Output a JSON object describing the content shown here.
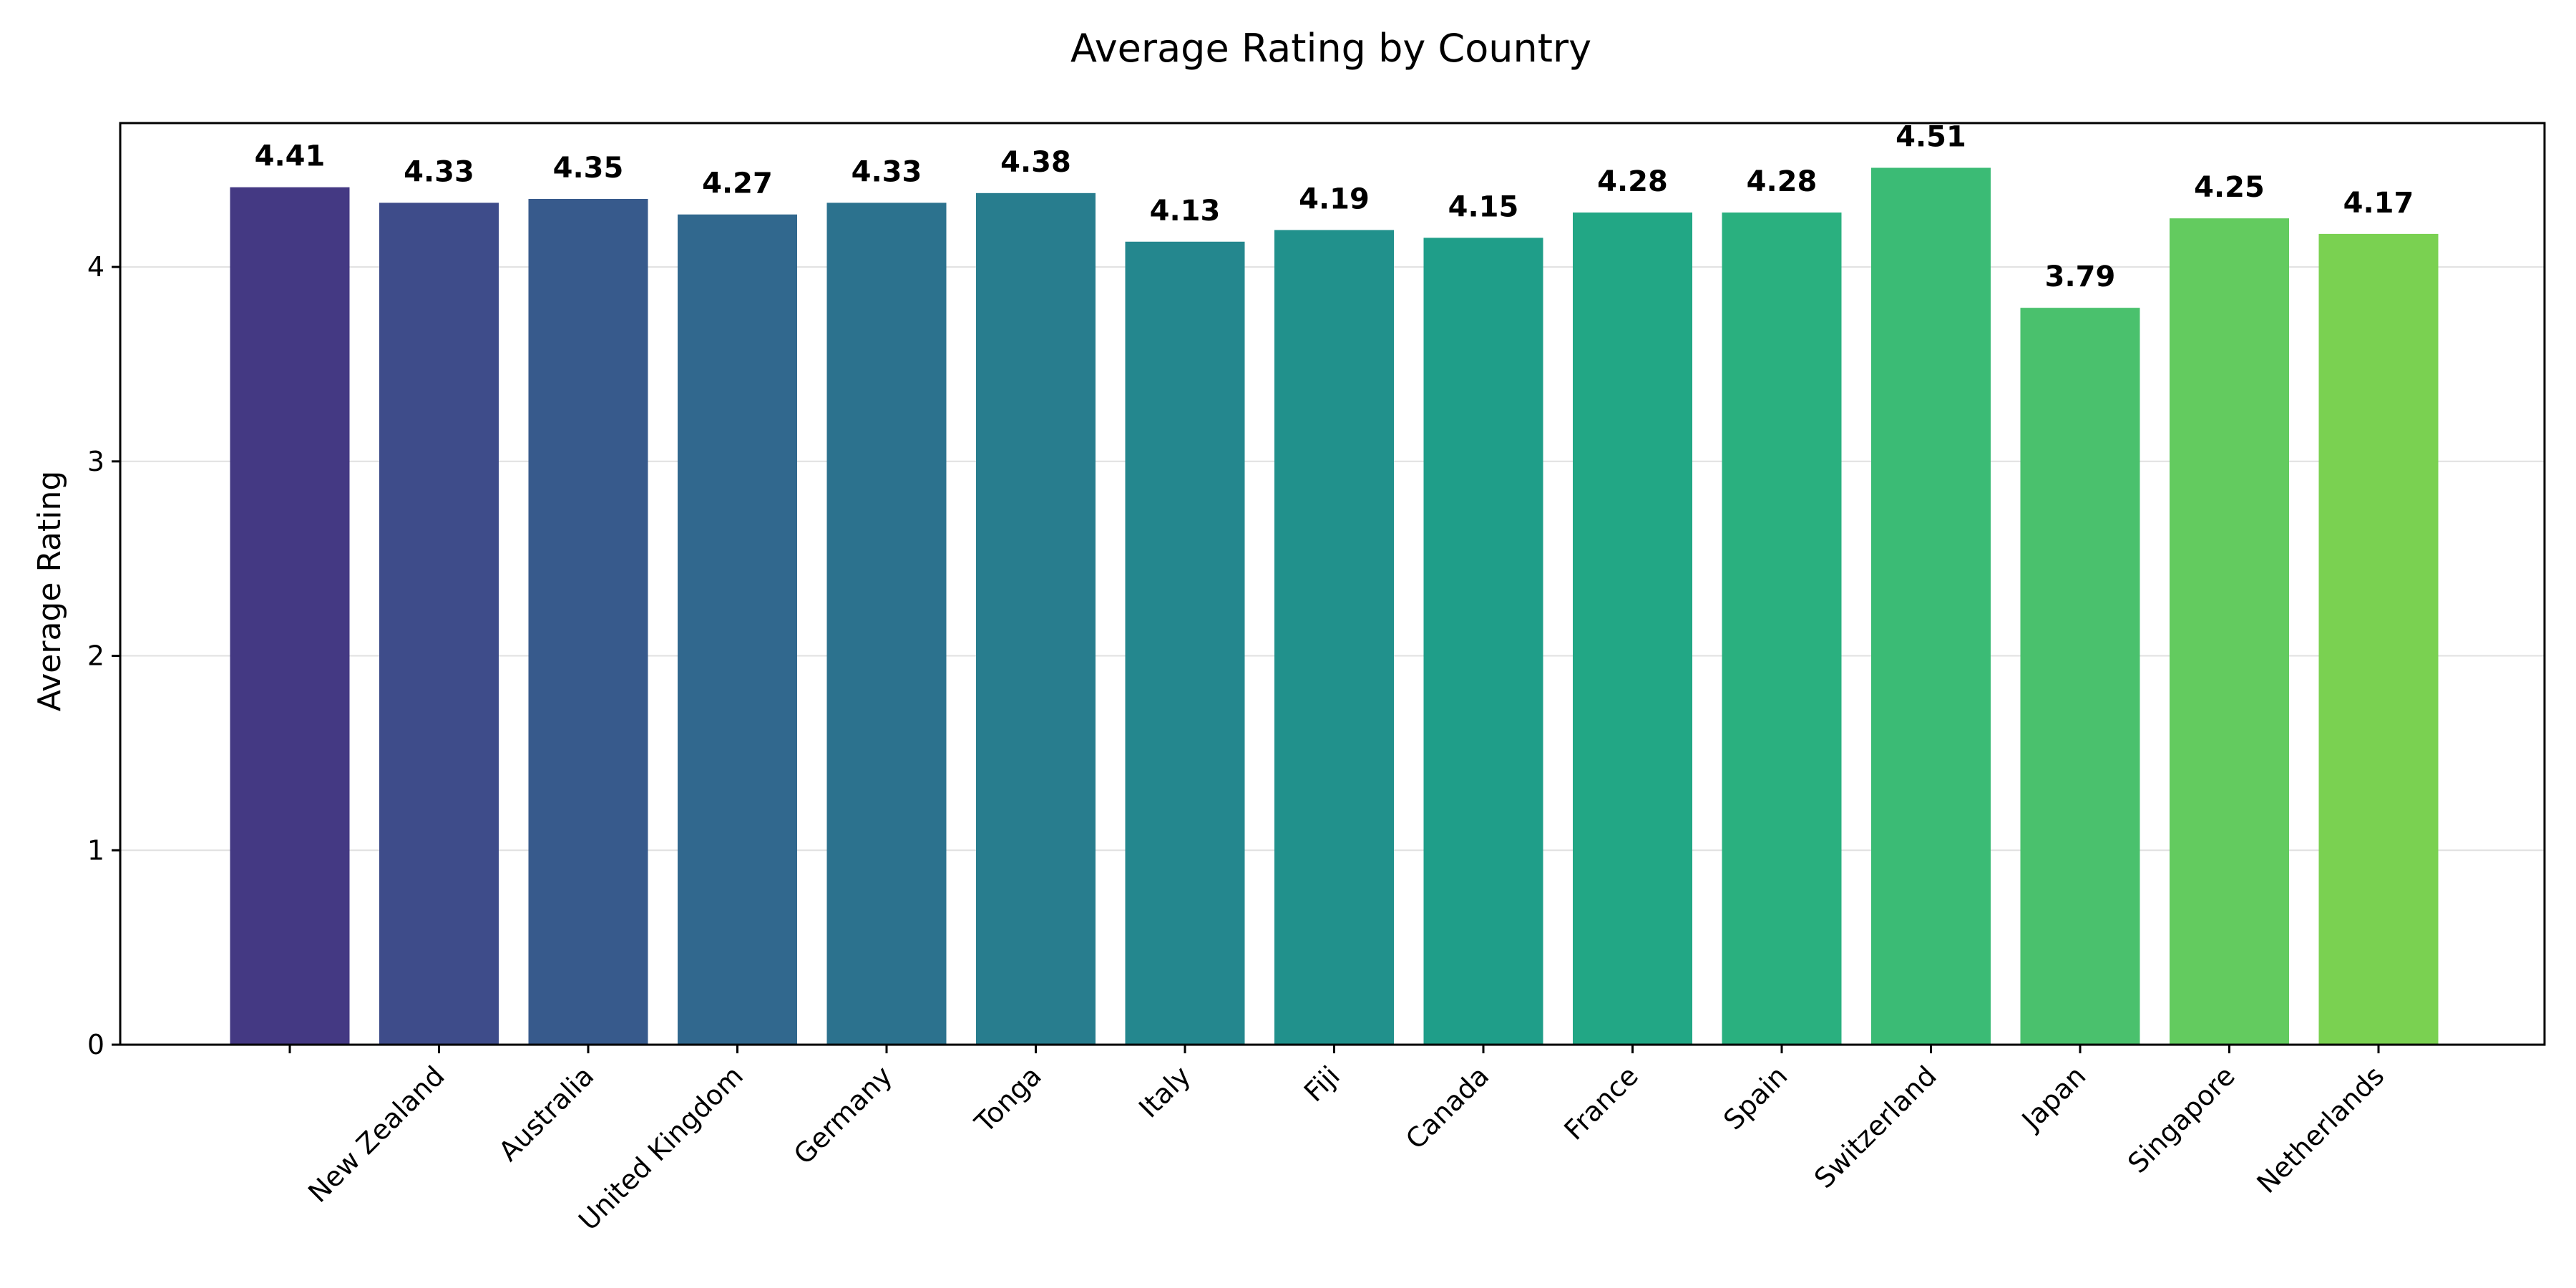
{
  "chart_data": {
    "type": "bar",
    "title": "Average Rating by Country",
    "xlabel": "",
    "ylabel": "Average Rating",
    "ylim": [
      0,
      4.74
    ],
    "yticks": [
      0,
      1,
      2,
      3,
      4
    ],
    "grid": "y",
    "categories": [
      "",
      "New Zealand",
      "Australia",
      "United Kingdom",
      "Germany",
      "Tonga",
      "Italy",
      "Fiji",
      "Canada",
      "France",
      "Spain",
      "Switzerland",
      "Japan",
      "Singapore",
      "Netherlands"
    ],
    "values": [
      4.41,
      4.33,
      4.35,
      4.27,
      4.33,
      4.38,
      4.13,
      4.19,
      4.15,
      4.28,
      4.28,
      4.51,
      3.79,
      4.25,
      4.17
    ],
    "value_labels": [
      "4.41",
      "4.33",
      "4.35",
      "4.27",
      "4.33",
      "4.38",
      "4.13",
      "4.19",
      "4.15",
      "4.28",
      "4.28",
      "4.51",
      "3.79",
      "4.25",
      "4.17"
    ],
    "colors": [
      "#443983",
      "#3e4c8a",
      "#375a8c",
      "#31688e",
      "#2c728e",
      "#287d8e",
      "#24878e",
      "#21918c",
      "#1f9e89",
      "#22a785",
      "#2ab07f",
      "#3bbb75",
      "#4ac16d",
      "#63cb5f",
      "#7ad151"
    ]
  }
}
